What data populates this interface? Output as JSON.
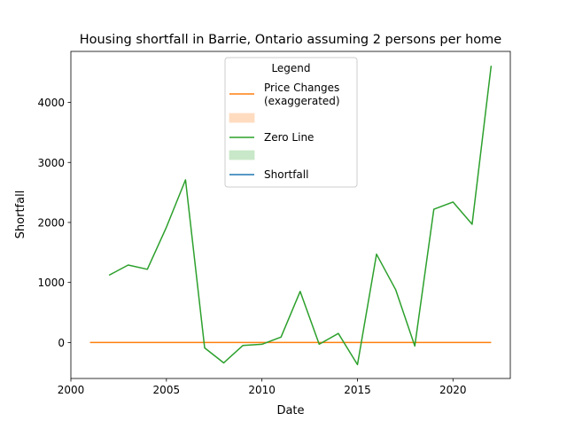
{
  "chart_data": {
    "type": "line",
    "title": "Housing shortfall in Barrie, Ontario assuming 2 persons per home",
    "xlabel": "Date",
    "ylabel": "Shortfall",
    "xlim": [
      2000,
      2023
    ],
    "ylim": [
      -600,
      4850
    ],
    "x_ticks": [
      2000,
      2005,
      2010,
      2015,
      2020
    ],
    "y_ticks": [
      0,
      1000,
      2000,
      3000,
      4000
    ],
    "grid": false,
    "legend": {
      "title": "Legend",
      "placement": "upper-center",
      "entries": [
        {
          "label": "Price Changes\n(exaggerated)",
          "kind": "line",
          "color": "#ff7f0e"
        },
        {
          "label": "",
          "kind": "patch",
          "color": "#ffdcc0"
        },
        {
          "label": "Zero Line",
          "kind": "line",
          "color": "#2ca02c"
        },
        {
          "label": "",
          "kind": "patch",
          "color": "#c9e8c9"
        },
        {
          "label": "Shortfall",
          "kind": "line",
          "color": "#1f77b4"
        }
      ]
    },
    "series": [
      {
        "color": "#2ca02c",
        "x": [
          2002,
          2003,
          2004,
          2005,
          2006,
          2007,
          2008,
          2009,
          2010,
          2011,
          2012,
          2013,
          2014,
          2015,
          2016,
          2017,
          2018,
          2019,
          2020,
          2021,
          2022
        ],
        "values": [
          1120,
          1290,
          1220,
          1920,
          2710,
          -90,
          -340,
          -50,
          -30,
          90,
          850,
          -30,
          150,
          -370,
          1470,
          880,
          -60,
          2220,
          2340,
          1970,
          4610
        ]
      },
      {
        "color": "#ff7f0e",
        "x": [
          2001,
          2022
        ],
        "values": [
          0,
          0
        ]
      }
    ]
  }
}
